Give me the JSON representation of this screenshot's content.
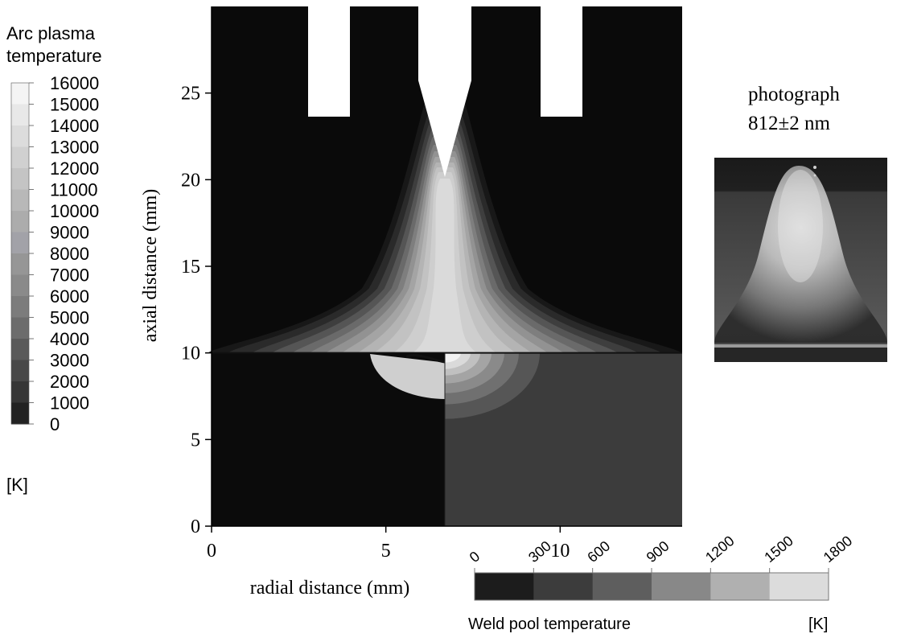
{
  "chart_data": {
    "type": "heatmap",
    "xlabel": "radial distance (mm)",
    "ylabel": "axial distance (mm)",
    "x_ticks": [
      0,
      5,
      10
    ],
    "y_ticks": [
      0,
      5,
      10,
      15,
      20,
      25
    ],
    "xlim": [
      0,
      13.5
    ],
    "ylim": [
      0,
      30
    ],
    "grid": false,
    "arc_legend": {
      "title_lines": [
        "Arc plasma",
        "temperature"
      ],
      "unit": "[K]",
      "levels": [
        16000,
        15000,
        14000,
        13000,
        12000,
        11000,
        10000,
        9000,
        8000,
        7000,
        6000,
        5000,
        4000,
        3000,
        2000,
        1000,
        0
      ],
      "colors": [
        "#f4f4f4",
        "#e8e8e8",
        "#dcdcdc",
        "#d0d0d0",
        "#c4c4c4",
        "#b8b8b8",
        "#acacac",
        "#a2a2a8",
        "#969696",
        "#8a8a8a",
        "#7c7c7c",
        "#6c6c6c",
        "#5a5a5a",
        "#484848",
        "#363636",
        "#222222",
        "#0a0a0a"
      ]
    },
    "weld_legend": {
      "title": "Weld pool temperature",
      "unit": "[K]",
      "ticks": [
        0,
        300,
        600,
        900,
        1200,
        1500,
        1800
      ],
      "colors": [
        "#1c1c1c",
        "#3c3c3c",
        "#5e5e5e",
        "#888888",
        "#b0b0b0",
        "#dcdcdc"
      ]
    },
    "photograph": {
      "label_lines": [
        "photograph",
        "812±2 nm"
      ]
    }
  }
}
